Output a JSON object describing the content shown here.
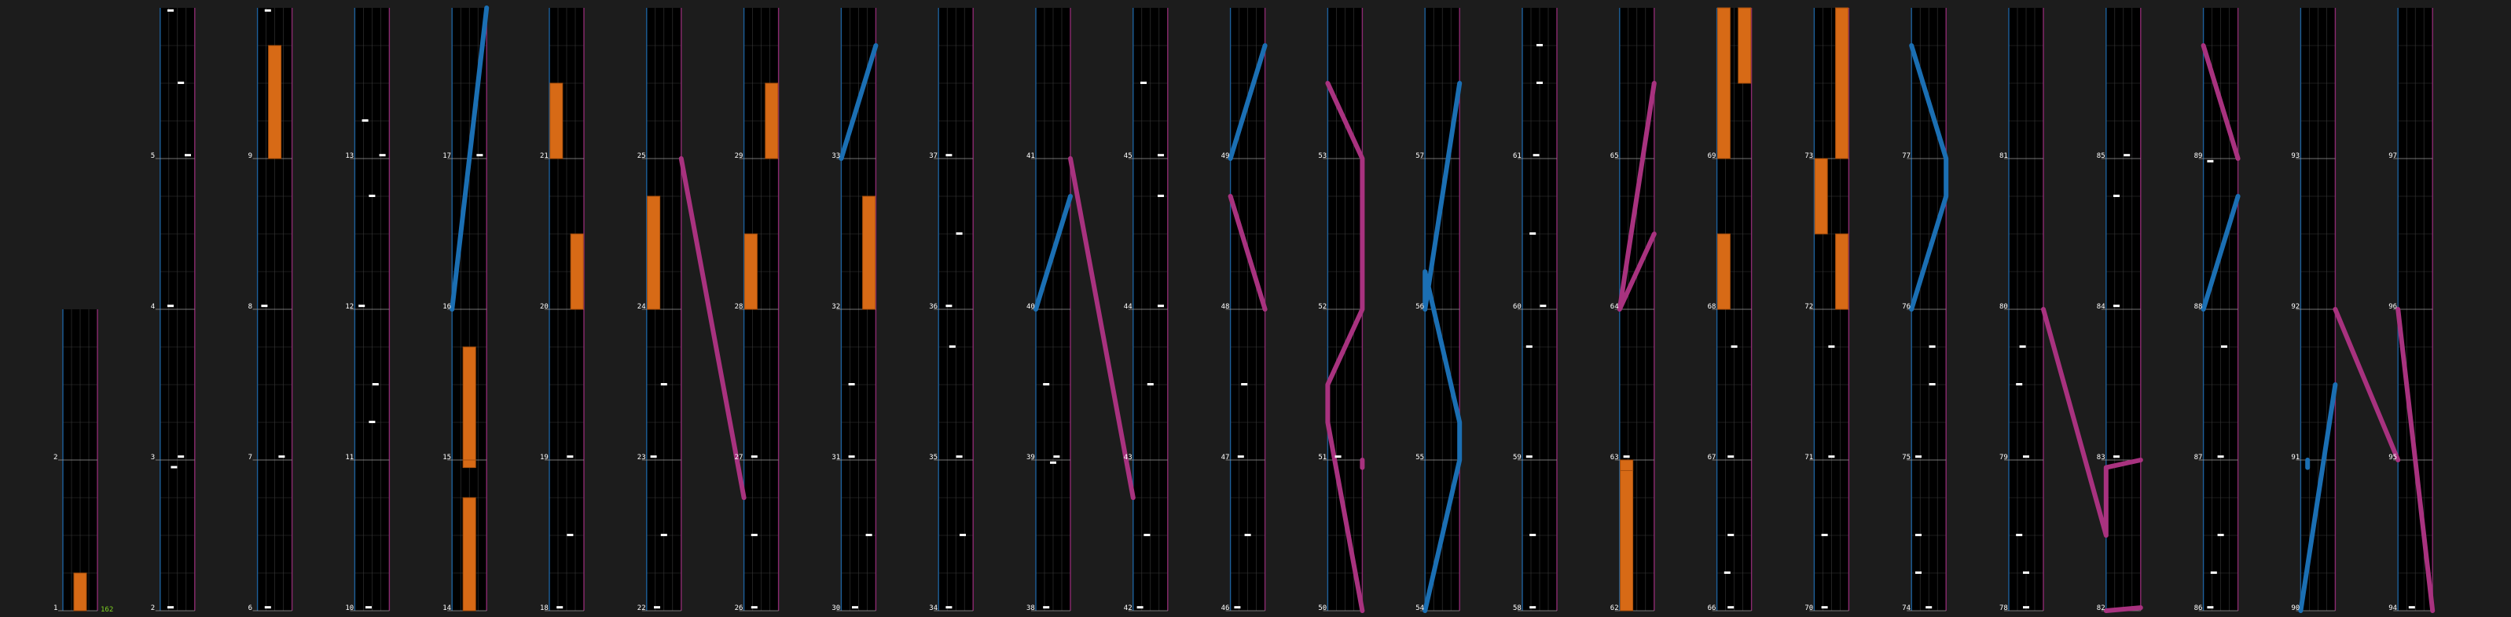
{
  "chart_data": {
    "type": "rhythm-game-chart",
    "combo_label": "162",
    "colors": {
      "background": "#1c1c1c",
      "lane": "#000000",
      "grid": "#3a3a3a",
      "left_border": "#1d5f9a",
      "right_border": "#8b2a70",
      "note": "#ffffff",
      "hold": "#d76a16",
      "hold_edge": "#a84f0c",
      "slide_blue": "#1b6fb3",
      "slide_pink": "#a8327f"
    },
    "holds": [
      {
        "measure": 1,
        "from": 0.0,
        "to": 0.25,
        "lane": 0.5
      },
      {
        "measure": 9,
        "from": 0.0,
        "to": 0.75,
        "lane": 0.5
      },
      {
        "measure": 14,
        "from": 0.0,
        "to": 0.75,
        "lane": 0.5
      },
      {
        "measure": 14,
        "from": 0.95,
        "to": 1.0,
        "lane": 0.5
      },
      {
        "measure": 15,
        "from": 0.0,
        "to": 0.75,
        "lane": 0.5
      },
      {
        "measure": 21,
        "from": 0.0,
        "to": 0.5,
        "lane": 0.2
      },
      {
        "measure": 20,
        "from": 0.0,
        "to": 0.5,
        "lane": 0.8
      },
      {
        "measure": 24,
        "from": 0.0,
        "to": 0.75,
        "lane": 0.2
      },
      {
        "measure": 28,
        "from": 0.0,
        "to": 0.5,
        "lane": 0.2
      },
      {
        "measure": 29,
        "from": 0.0,
        "to": 0.5,
        "lane": 0.8
      },
      {
        "measure": 32,
        "from": 0.0,
        "to": 0.75,
        "lane": 0.8
      },
      {
        "measure": 62,
        "from": 0.0,
        "to": 1.0,
        "lane": 0.2
      },
      {
        "measure": 62,
        "from": 0.93,
        "to": 1.0,
        "lane": 0.2
      },
      {
        "measure": 68,
        "from": 0.0,
        "to": 0.5,
        "lane": 0.2
      },
      {
        "measure": 69,
        "from": 0.0,
        "to": 1.0,
        "lane": 0.2
      },
      {
        "measure": 69,
        "from": 0.5,
        "to": 1.0,
        "lane": 0.8
      },
      {
        "measure": 72,
        "from": 0.0,
        "to": 0.5,
        "lane": 0.8
      },
      {
        "measure": 72,
        "from": 0.5,
        "to": 1.0,
        "lane": 0.2
      },
      {
        "measure": 73,
        "from": 0.0,
        "to": 1.0,
        "lane": 0.8
      }
    ],
    "slides": [
      {
        "color": "blue",
        "points": [
          [
            16,
            0.0,
            0.0
          ],
          [
            17,
            1.0,
            1.0
          ]
        ]
      },
      {
        "color": "pink",
        "points": [
          [
            25,
            0.0,
            1.0
          ],
          [
            26,
            0.75,
            0.0
          ]
        ]
      },
      {
        "color": "blue",
        "points": [
          [
            33,
            0.0,
            0.0
          ],
          [
            33,
            0.75,
            1.0
          ]
        ]
      },
      {
        "color": "pink",
        "points": [
          [
            41,
            0.0,
            1.0
          ],
          [
            42,
            0.75,
            0.0
          ]
        ]
      },
      {
        "color": "blue",
        "points": [
          [
            40,
            0.0,
            0.0
          ],
          [
            40,
            0.75,
            1.0
          ]
        ]
      },
      {
        "color": "pink",
        "points": [
          [
            48,
            0.0,
            1.0
          ],
          [
            48,
            0.75,
            0.0
          ]
        ]
      },
      {
        "color": "blue",
        "points": [
          [
            49,
            0.0,
            0.0
          ],
          [
            49,
            0.75,
            1.0
          ]
        ]
      },
      {
        "color": "pink",
        "points": [
          [
            50,
            0.95,
            1.0
          ],
          [
            50,
            1.0,
            1.0
          ]
        ]
      },
      {
        "color": "pink",
        "points": [
          [
            50,
            0.0,
            1.0
          ],
          [
            51,
            0.25,
            0.0
          ],
          [
            51,
            0.5,
            0.0
          ],
          [
            51,
            1.0,
            1.0
          ],
          [
            52,
            0.75,
            1.0
          ],
          [
            53,
            0.0,
            1.0
          ],
          [
            53,
            0.5,
            0.0
          ]
        ]
      },
      {
        "color": "blue",
        "points": [
          [
            54,
            0.0,
            0.0
          ],
          [
            55,
            0.0,
            1.0
          ],
          [
            55,
            0.25,
            1.0
          ],
          [
            56,
            0.25,
            0.0
          ],
          [
            56,
            0.0,
            0.0
          ],
          [
            57,
            0.5,
            1.0
          ]
        ]
      },
      {
        "color": "pink",
        "points": [
          [
            64,
            0.5,
            1.0
          ],
          [
            64,
            0.0,
            0.0
          ],
          [
            65,
            0.5,
            1.0
          ]
        ]
      },
      {
        "color": "blue",
        "points": [
          [
            76,
            0.0,
            0.0
          ],
          [
            76,
            0.75,
            1.0
          ],
          [
            77,
            0.0,
            1.0
          ],
          [
            77,
            0.75,
            0.0
          ]
        ]
      },
      {
        "color": "pink",
        "points": [
          [
            80,
            0.0,
            1.0
          ],
          [
            82,
            0.5,
            0.0
          ],
          [
            82,
            0.95,
            0.0
          ],
          [
            82,
            1.0,
            1.0
          ]
        ]
      },
      {
        "color": "pink",
        "points": [
          [
            82,
            0.0,
            0.0
          ],
          [
            82,
            0.02,
            1.0
          ]
        ]
      },
      {
        "color": "pink",
        "points": [
          [
            89,
            0.0,
            1.0
          ],
          [
            89,
            0.75,
            0.0
          ]
        ]
      },
      {
        "color": "blue",
        "points": [
          [
            88,
            0.0,
            0.0
          ],
          [
            88,
            0.75,
            1.0
          ]
        ]
      },
      {
        "color": "blue",
        "points": [
          [
            90,
            0.95,
            0.2
          ],
          [
            90,
            1.0,
            0.2
          ]
        ]
      },
      {
        "color": "blue",
        "points": [
          [
            90,
            0.0,
            0.0
          ],
          [
            91,
            0.5,
            1.0
          ]
        ]
      },
      {
        "color": "pink",
        "points": [
          [
            92,
            0.0,
            1.0
          ],
          [
            94,
            1.0,
            0.0
          ]
        ]
      },
      {
        "color": "pink",
        "points": [
          [
            94,
            0.0,
            1.0
          ],
          [
            95,
            1.0,
            0.0
          ]
        ]
      }
    ]
  }
}
